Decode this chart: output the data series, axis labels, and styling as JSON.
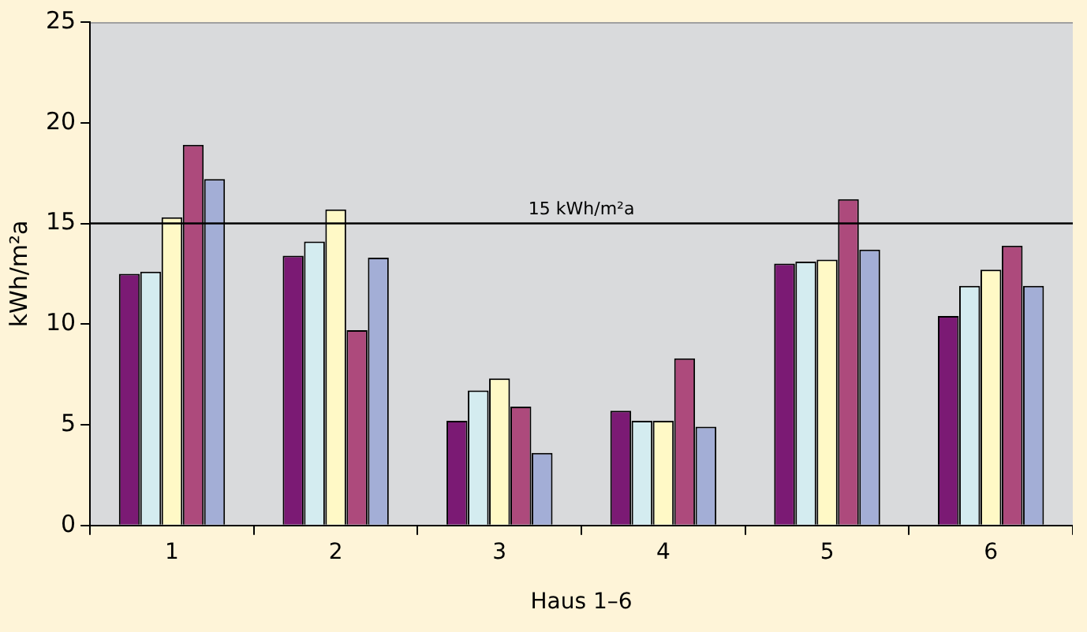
{
  "chart_data": {
    "type": "bar",
    "xlabel": "Haus 1–6",
    "ylabel": "kWh/m²a",
    "categories": [
      "1",
      "2",
      "3",
      "4",
      "5",
      "6"
    ],
    "series": [
      {
        "color": "#7b1a74",
        "values": [
          12.5,
          13.4,
          5.2,
          5.7,
          13.0,
          10.4
        ]
      },
      {
        "color": "#d4ecf0",
        "values": [
          12.6,
          14.1,
          6.7,
          5.2,
          13.1,
          11.9
        ]
      },
      {
        "color": "#fff9c6",
        "values": [
          15.3,
          15.7,
          7.3,
          5.2,
          13.2,
          12.7
        ]
      },
      {
        "color": "#ad4a7c",
        "values": [
          18.9,
          9.7,
          5.9,
          8.3,
          16.2,
          13.9
        ]
      },
      {
        "color": "#a3aed6",
        "values": [
          17.2,
          13.3,
          3.6,
          4.9,
          13.7,
          11.9
        ]
      }
    ],
    "ylim": [
      0,
      25
    ],
    "yticks": [
      0,
      5,
      10,
      15,
      20,
      25
    ],
    "grid": false,
    "legend": false,
    "ref_lines": [
      {
        "axis": "y",
        "value": 15,
        "label": "15 kWh/m²a",
        "color": "#000000"
      }
    ]
  }
}
